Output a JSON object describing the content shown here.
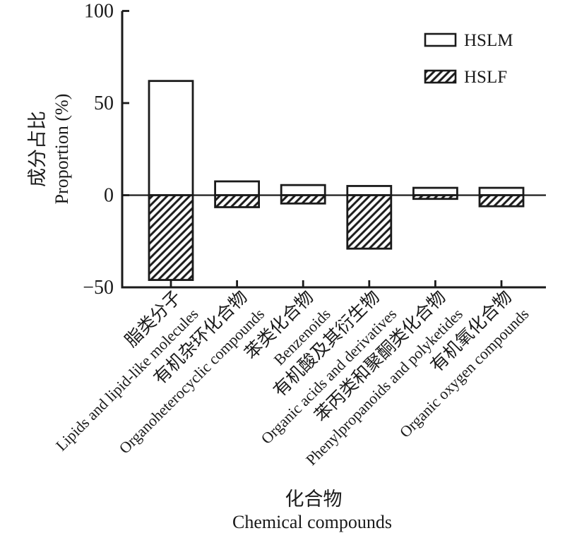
{
  "figure": {
    "background": "#ffffff",
    "ink_color": "#1a1a1a"
  },
  "chart_data": {
    "type": "bar",
    "title": "",
    "categories": [
      {
        "zh": "脂类分子",
        "en": "Lipids and lipid-like molecules"
      },
      {
        "zh": "有机杂环化合物",
        "en": "Organoheterocyclic compounds"
      },
      {
        "zh": "苯类化合物",
        "en": "Benzenoids"
      },
      {
        "zh": "有机酸及其衍生物",
        "en": "Organic acids and derivatives"
      },
      {
        "zh": "苯丙类和聚酮类化合物",
        "en": "Phenylpropanoids and polyketides"
      },
      {
        "zh": "有机氧化合物",
        "en": "Organic oxygen compounds"
      }
    ],
    "series": [
      {
        "name": "HSLM",
        "style": "open",
        "values": [
          62,
          7.5,
          5.5,
          5,
          4,
          4
        ]
      },
      {
        "name": "HSLF",
        "style": "hatched",
        "values": [
          -46,
          -6.5,
          -4.5,
          -29,
          -2,
          -6
        ]
      }
    ],
    "xlabel_zh": "化合物",
    "xlabel_en": "Chemical compounds",
    "ylabel_zh": "成分占比",
    "ylabel_en": "Proportion (%)",
    "ylim": [
      -50,
      100
    ],
    "yticks": [
      100,
      50,
      0,
      -50
    ],
    "ytick_labels": [
      "100",
      "50",
      "0",
      "−50"
    ],
    "grid": false,
    "legend_position": "top-right"
  }
}
